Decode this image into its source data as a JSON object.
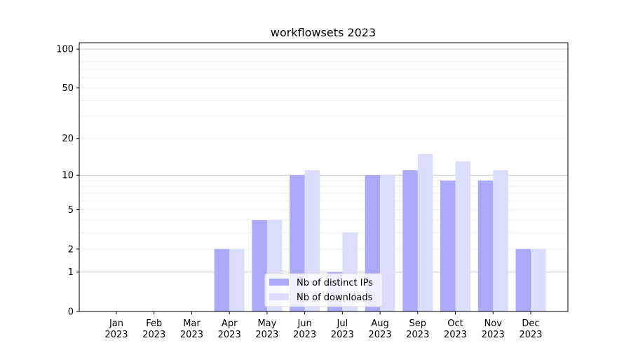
{
  "chart_data": {
    "type": "bar",
    "title": "workflowsets 2023",
    "xlabel": "",
    "ylabel": "",
    "yscale": "symlog (log10(1+y))",
    "ylim": [
      0,
      112
    ],
    "yticks": [
      0,
      1,
      2,
      5,
      10,
      20,
      50,
      100
    ],
    "grid": true,
    "legend_position": "bottom-center",
    "categories": [
      "Jan\n2023",
      "Feb\n2023",
      "Mar\n2023",
      "Apr\n2023",
      "May\n2023",
      "Jun\n2023",
      "Jul\n2023",
      "Aug\n2023",
      "Sep\n2023",
      "Oct\n2023",
      "Nov\n2023",
      "Dec\n2023"
    ],
    "series": [
      {
        "name": "Nb of distinct IPs",
        "color": "#aaaaf8",
        "values": [
          0,
          0,
          0,
          2,
          4,
          10,
          1,
          10,
          11,
          9,
          9,
          2
        ]
      },
      {
        "name": "Nb of downloads",
        "color": "#dcdcfc",
        "values": [
          0,
          0,
          0,
          2,
          4,
          11,
          3,
          10,
          15,
          13,
          11,
          2
        ]
      }
    ]
  }
}
